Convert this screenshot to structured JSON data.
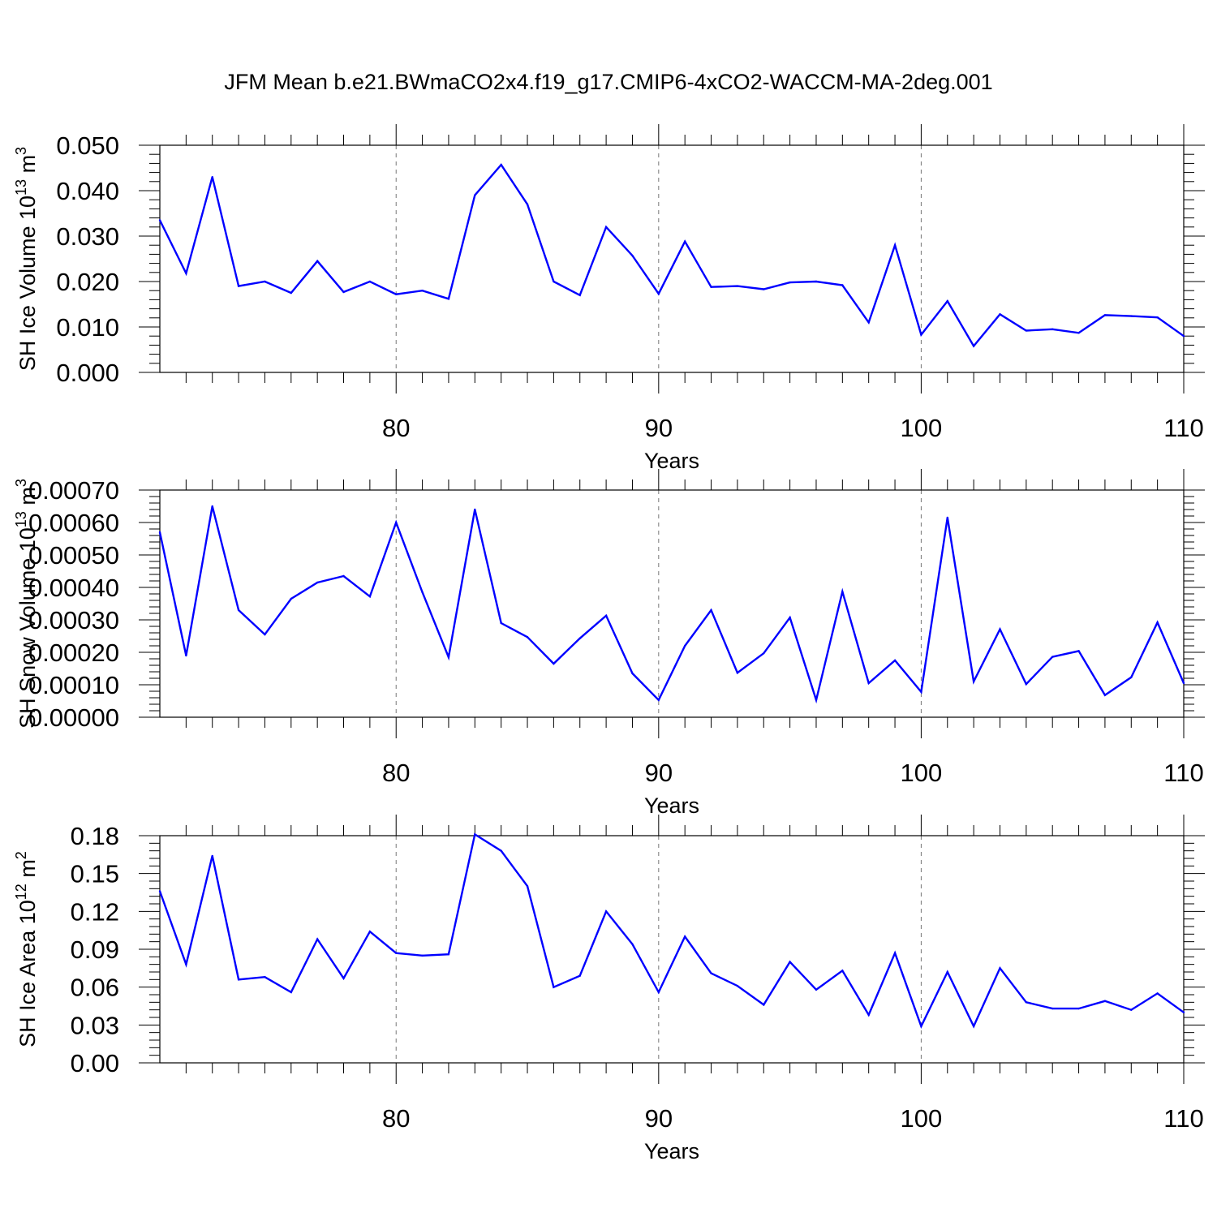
{
  "title": "JFM Mean b.e21.BWmaCO2x4.f19_g17.CMIP6-4xCO2-WACCM-MA-2deg.001",
  "colors": {
    "line": "#0000ff",
    "axis": "#000000",
    "grid": "#777777"
  },
  "chart_data": [
    {
      "type": "line",
      "ylabel": "SH Ice Volume 10^13 m^3",
      "ylabel_parts": {
        "base": "SH Ice Volume 10",
        "exp1": "13",
        "mid": " m",
        "exp2": "3"
      },
      "xlabel": "Years",
      "xlim": [
        71,
        110
      ],
      "ylim": [
        0,
        0.05
      ],
      "x_ticks": [
        80,
        90,
        100,
        110
      ],
      "y_ticks": [
        "0.000",
        "0.010",
        "0.020",
        "0.030",
        "0.040",
        "0.050"
      ],
      "y_tick_values": [
        0,
        0.01,
        0.02,
        0.03,
        0.04,
        0.05
      ],
      "grid_x": [
        80,
        90,
        100
      ],
      "x": [
        71,
        72,
        73,
        74,
        75,
        76,
        77,
        78,
        79,
        80,
        81,
        82,
        83,
        84,
        85,
        86,
        87,
        88,
        89,
        90,
        91,
        92,
        93,
        94,
        95,
        96,
        97,
        98,
        99,
        100,
        101,
        102,
        103,
        104,
        105,
        106,
        107,
        108,
        109,
        110
      ],
      "values": [
        0.0335,
        0.0218,
        0.043,
        0.019,
        0.02,
        0.0175,
        0.0245,
        0.0177,
        0.02,
        0.0172,
        0.018,
        0.0162,
        0.039,
        0.0457,
        0.037,
        0.02,
        0.017,
        0.032,
        0.0257,
        0.0173,
        0.0288,
        0.0188,
        0.019,
        0.0183,
        0.0198,
        0.02,
        0.0192,
        0.011,
        0.028,
        0.0083,
        0.0157,
        0.0058,
        0.0128,
        0.0092,
        0.0095,
        0.0087,
        0.0126,
        0.0124,
        0.0121,
        0.008
      ]
    },
    {
      "type": "line",
      "ylabel": "SH Snow Volume 10^13 m^3",
      "ylabel_parts": {
        "base": "SH Snow Volume 10",
        "exp1": "13",
        "mid": " m",
        "exp2": "3"
      },
      "xlabel": "Years",
      "xlim": [
        71,
        110
      ],
      "ylim": [
        0,
        0.0007
      ],
      "x_ticks": [
        80,
        90,
        100,
        110
      ],
      "y_ticks": [
        "0.00000",
        "0.00010",
        "0.00020",
        "0.00030",
        "0.00040",
        "0.00050",
        "0.00060",
        "0.00070"
      ],
      "y_tick_values": [
        0,
        0.0001,
        0.0002,
        0.0003,
        0.0004,
        0.0005,
        0.0006,
        0.0007
      ],
      "grid_x": [
        80,
        90,
        100
      ],
      "x": [
        71,
        72,
        73,
        74,
        75,
        76,
        77,
        78,
        79,
        80,
        81,
        82,
        83,
        84,
        85,
        86,
        87,
        88,
        89,
        90,
        91,
        92,
        93,
        94,
        95,
        96,
        97,
        98,
        99,
        100,
        101,
        102,
        103,
        104,
        105,
        106,
        107,
        108,
        109,
        110
      ],
      "values": [
        0.00057,
        0.00019,
        0.00065,
        0.00033,
        0.000255,
        0.000365,
        0.000415,
        0.000435,
        0.000372,
        0.0006,
        0.000385,
        0.000185,
        0.00064,
        0.00029,
        0.000247,
        0.000165,
        0.000243,
        0.000313,
        0.000135,
        5.3e-05,
        0.00022,
        0.00033,
        0.000137,
        0.000197,
        0.000307,
        5.3e-05,
        0.000387,
        0.000105,
        0.000175,
        7.8e-05,
        0.000615,
        0.00011,
        0.000271,
        0.000102,
        0.000186,
        0.000204,
        6.8e-05,
        0.000123,
        0.000292,
        0.000105
      ]
    },
    {
      "type": "line",
      "ylabel": "SH Ice Area 10^12 m^2",
      "ylabel_parts": {
        "base": "SH Ice Area 10",
        "exp1": "12",
        "mid": " m",
        "exp2": "2"
      },
      "xlabel": "Years",
      "xlim": [
        71,
        110
      ],
      "ylim": [
        0,
        0.18
      ],
      "x_ticks": [
        80,
        90,
        100,
        110
      ],
      "y_ticks": [
        "0.00",
        "0.03",
        "0.06",
        "0.09",
        "0.12",
        "0.15",
        "0.18"
      ],
      "y_tick_values": [
        0,
        0.03,
        0.06,
        0.09,
        0.12,
        0.15,
        0.18
      ],
      "grid_x": [
        80,
        90,
        100
      ],
      "x": [
        71,
        72,
        73,
        74,
        75,
        76,
        77,
        78,
        79,
        80,
        81,
        82,
        83,
        84,
        85,
        86,
        87,
        88,
        89,
        90,
        91,
        92,
        93,
        94,
        95,
        96,
        97,
        98,
        99,
        100,
        101,
        102,
        103,
        104,
        105,
        106,
        107,
        108,
        109,
        110
      ],
      "values": [
        0.136,
        0.078,
        0.164,
        0.066,
        0.068,
        0.056,
        0.098,
        0.067,
        0.104,
        0.087,
        0.085,
        0.086,
        0.181,
        0.168,
        0.14,
        0.06,
        0.069,
        0.12,
        0.094,
        0.056,
        0.1,
        0.071,
        0.061,
        0.046,
        0.08,
        0.058,
        0.073,
        0.038,
        0.087,
        0.029,
        0.072,
        0.029,
        0.075,
        0.048,
        0.043,
        0.043,
        0.049,
        0.042,
        0.055,
        0.04
      ]
    }
  ]
}
